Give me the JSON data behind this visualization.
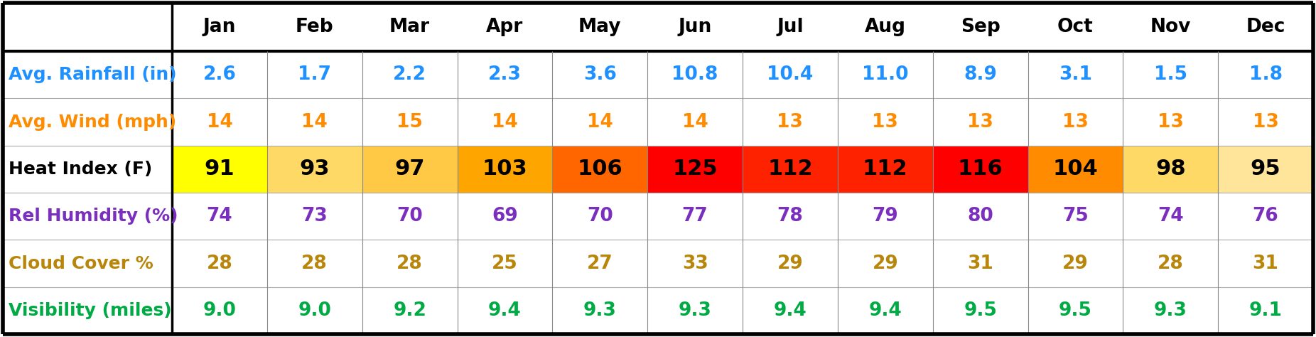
{
  "months": [
    "Jan",
    "Feb",
    "Mar",
    "Apr",
    "May",
    "Jun",
    "Jul",
    "Aug",
    "Sep",
    "Oct",
    "Nov",
    "Dec"
  ],
  "rows": [
    {
      "label": "Avg. Rainfall (in)",
      "values": [
        "2.6",
        "1.7",
        "2.2",
        "2.3",
        "3.6",
        "10.8",
        "10.4",
        "11.0",
        "8.9",
        "3.1",
        "1.5",
        "1.8"
      ],
      "label_color": "#1E90FF",
      "value_color": "#1E90FF",
      "label_italic": false,
      "bg_colors": [
        "#FFFFFF",
        "#FFFFFF",
        "#FFFFFF",
        "#FFFFFF",
        "#FFFFFF",
        "#FFFFFF",
        "#FFFFFF",
        "#FFFFFF",
        "#FFFFFF",
        "#FFFFFF",
        "#FFFFFF",
        "#FFFFFF"
      ]
    },
    {
      "label": "Avg. Wind (mph)",
      "values": [
        "14",
        "14",
        "15",
        "14",
        "14",
        "14",
        "13",
        "13",
        "13",
        "13",
        "13",
        "13"
      ],
      "label_color": "#FF8C00",
      "value_color": "#FF8C00",
      "label_italic": false,
      "bg_colors": [
        "#FFFFFF",
        "#FFFFFF",
        "#FFFFFF",
        "#FFFFFF",
        "#FFFFFF",
        "#FFFFFF",
        "#FFFFFF",
        "#FFFFFF",
        "#FFFFFF",
        "#FFFFFF",
        "#FFFFFF",
        "#FFFFFF"
      ]
    },
    {
      "label": "Heat Index (F)",
      "values": [
        "91",
        "93",
        "97",
        "103",
        "106",
        "125",
        "112",
        "112",
        "116",
        "104",
        "98",
        "95"
      ],
      "label_color": "#000000",
      "value_color": "#000000",
      "label_italic": false,
      "bg_colors": [
        "#FFFF00",
        "#FFD966",
        "#FFC845",
        "#FFA500",
        "#FF6600",
        "#FF0000",
        "#FF2200",
        "#FF2200",
        "#FF0000",
        "#FF8C00",
        "#FFD966",
        "#FFE599"
      ]
    },
    {
      "label": "Rel Humidity (%)",
      "values": [
        "74",
        "73",
        "70",
        "69",
        "70",
        "77",
        "78",
        "79",
        "80",
        "75",
        "74",
        "76"
      ],
      "label_color": "#7B2FBE",
      "value_color": "#7B2FBE",
      "label_italic": false,
      "bg_colors": [
        "#FFFFFF",
        "#FFFFFF",
        "#FFFFFF",
        "#FFFFFF",
        "#FFFFFF",
        "#FFFFFF",
        "#FFFFFF",
        "#FFFFFF",
        "#FFFFFF",
        "#FFFFFF",
        "#FFFFFF",
        "#FFFFFF"
      ]
    },
    {
      "label": "Cloud Cover %",
      "values": [
        "28",
        "28",
        "28",
        "25",
        "27",
        "33",
        "29",
        "29",
        "31",
        "29",
        "28",
        "31"
      ],
      "label_color": "#B8860B",
      "value_color": "#B8860B",
      "label_italic": false,
      "bg_colors": [
        "#FFFFFF",
        "#FFFFFF",
        "#FFFFFF",
        "#FFFFFF",
        "#FFFFFF",
        "#FFFFFF",
        "#FFFFFF",
        "#FFFFFF",
        "#FFFFFF",
        "#FFFFFF",
        "#FFFFFF",
        "#FFFFFF"
      ]
    },
    {
      "label": "Visibility (miles)",
      "values": [
        "9.0",
        "9.0",
        "9.2",
        "9.4",
        "9.3",
        "9.3",
        "9.4",
        "9.4",
        "9.5",
        "9.5",
        "9.3",
        "9.1"
      ],
      "label_color": "#00AA44",
      "value_color": "#00AA44",
      "label_italic": false,
      "bg_colors": [
        "#FFFFFF",
        "#FFFFFF",
        "#FFFFFF",
        "#FFFFFF",
        "#FFFFFF",
        "#FFFFFF",
        "#FFFFFF",
        "#FFFFFF",
        "#FFFFFF",
        "#FFFFFF",
        "#FFFFFF",
        "#FFFFFF"
      ]
    }
  ],
  "fig_width": 18.52,
  "fig_height": 4.74,
  "dpi": 100,
  "header_fontsize": 19,
  "label_fontsize": 18,
  "value_fontsize": 19,
  "heat_value_fontsize": 22,
  "outer_border_color": "#000000",
  "outer_border_lw": 4,
  "header_sep_lw": 3,
  "inner_sep_lw": 0.8,
  "label_sep_lw": 2.5
}
